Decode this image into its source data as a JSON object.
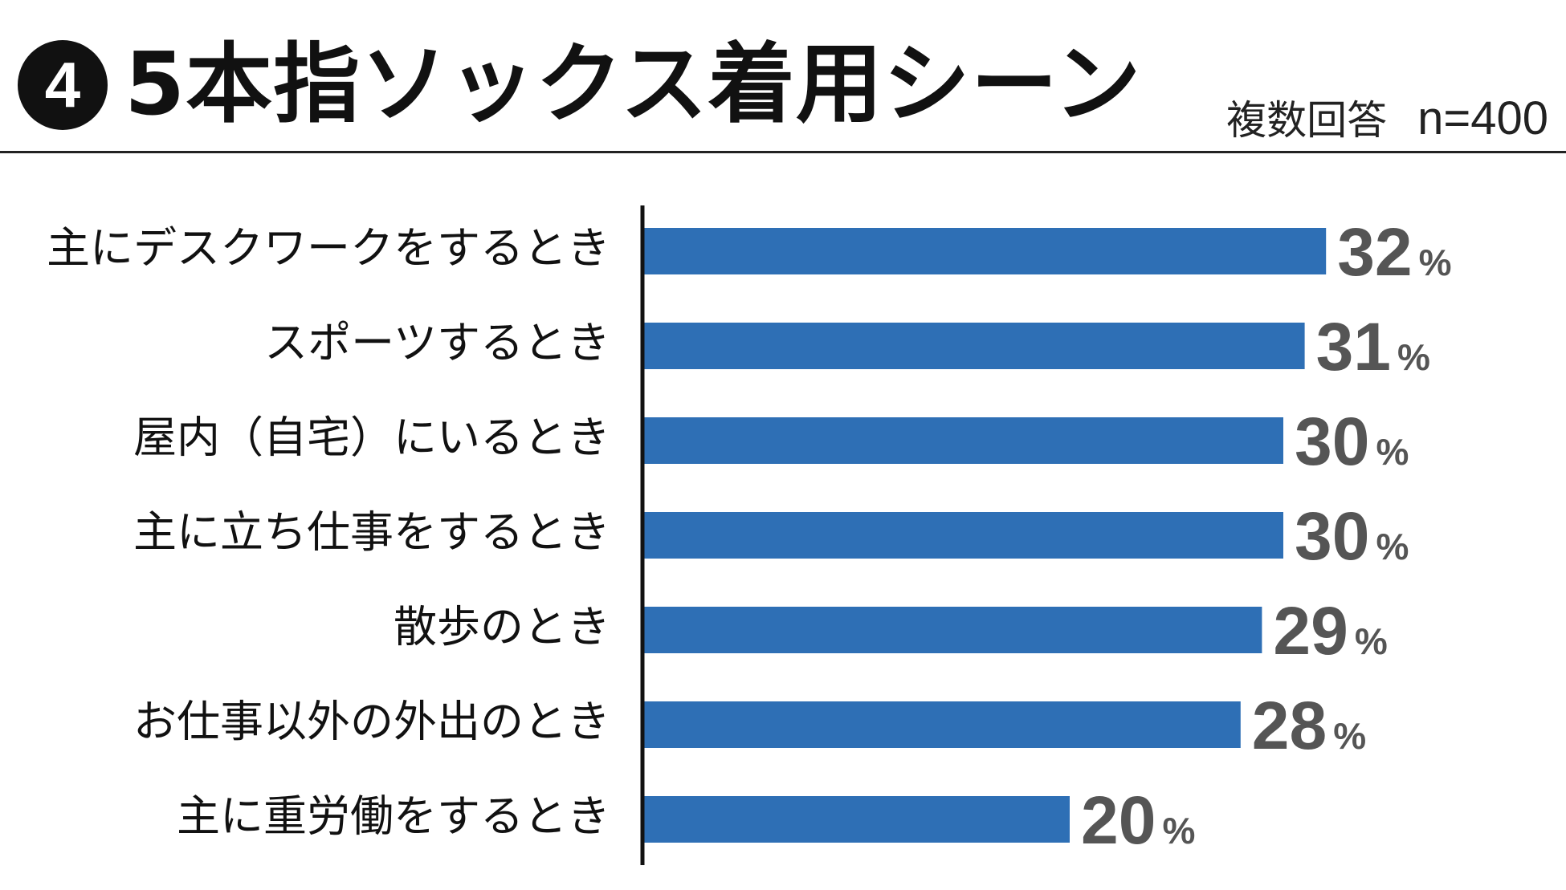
{
  "header": {
    "badge": "4",
    "title": "5本指ソックス着用シーン",
    "answer_type": "複数回答",
    "sample": "n=400"
  },
  "colors": {
    "bar": "#2e6fb5",
    "value_text": "#555555",
    "axis": "#111111"
  },
  "chart_data": {
    "type": "bar",
    "orientation": "horizontal",
    "categories": [
      "主にデスクワークをするとき",
      "スポーツするとき",
      "屋内（自宅）にいるとき",
      "主に立ち仕事をするとき",
      "散歩のとき",
      "お仕事以外の外出のとき",
      "主に重労働をするとき"
    ],
    "values": [
      32,
      31,
      30,
      30,
      29,
      28,
      20
    ],
    "value_suffix": "%",
    "xlim": [
      0,
      35
    ],
    "grid": false,
    "legend": "none"
  }
}
